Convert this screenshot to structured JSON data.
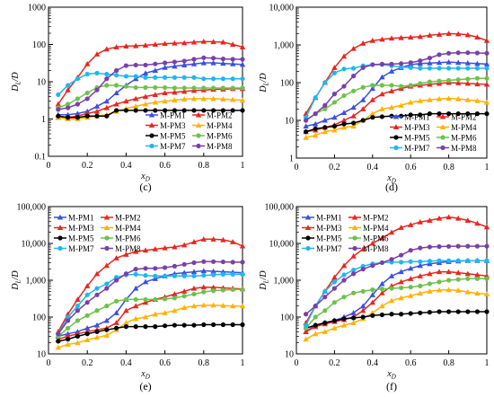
{
  "series_style": [
    {
      "name": "M-PM1",
      "color": "#3b4fe0",
      "marker": "triangle"
    },
    {
      "name": "M-PM2",
      "color": "#e8261f",
      "marker": "triangle"
    },
    {
      "name": "M-PM3",
      "color": "#e8261f",
      "marker": "triangle"
    },
    {
      "name": "M-PM4",
      "color": "#ffb300",
      "marker": "triangle"
    },
    {
      "name": "M-PM5",
      "color": "#000000",
      "marker": "circle"
    },
    {
      "name": "M-PM6",
      "color": "#6cc24a",
      "marker": "circle"
    },
    {
      "name": "M-PM7",
      "color": "#1fb7ee",
      "marker": "circle"
    },
    {
      "name": "M-PM8",
      "color": "#7a3fa8",
      "marker": "circle"
    }
  ],
  "chart_data": [
    {
      "panel_label": "(c)",
      "type": "line",
      "xlabel": "x_D",
      "ylabel": "D_L/D",
      "log_y": true,
      "xlim": [
        0,
        1
      ],
      "ylim": [
        0.1,
        1000
      ],
      "x_ticks": [
        "0",
        "0.2",
        "0.4",
        "0.6",
        "0.8",
        "1"
      ],
      "y_ticks": [
        "0.1",
        "1",
        "10",
        "100",
        "1000"
      ],
      "legend_position": "bottom-right",
      "x": [
        0.05,
        0.1,
        0.15,
        0.2,
        0.25,
        0.3,
        0.35,
        0.4,
        0.45,
        0.5,
        0.55,
        0.6,
        0.65,
        0.7,
        0.75,
        0.8,
        0.85,
        0.9,
        0.95,
        1.0
      ],
      "series": [
        {
          "name": "M-PM1",
          "values": [
            1.3,
            1.3,
            1.4,
            1.6,
            2.2,
            3.0,
            5,
            8,
            12,
            17,
            20,
            24,
            26,
            28,
            30,
            32,
            32,
            31,
            30,
            29
          ]
        },
        {
          "name": "M-PM2",
          "values": [
            1.1,
            1.1,
            1.2,
            1.4,
            1.6,
            2.0,
            2.5,
            3.0,
            3.5,
            4.0,
            4.5,
            5.0,
            5.2,
            5.5,
            5.8,
            6.0,
            6.2,
            6.3,
            6.5,
            6.5
          ]
        },
        {
          "name": "M-PM3",
          "values": [
            2.5,
            6,
            13,
            30,
            55,
            75,
            85,
            90,
            92,
            95,
            100,
            105,
            108,
            110,
            115,
            120,
            118,
            115,
            100,
            85
          ]
        },
        {
          "name": "M-PM4",
          "values": [
            1.1,
            1.0,
            1.0,
            1.1,
            1.2,
            1.3,
            1.6,
            1.9,
            2.2,
            2.5,
            2.8,
            3.0,
            3.2,
            3.4,
            3.5,
            3.5,
            3.5,
            3.4,
            3.3,
            3.2
          ]
        },
        {
          "name": "M-PM5",
          "values": [
            1.2,
            1.1,
            1.1,
            1.2,
            1.2,
            1.2,
            1.7,
            1.7,
            1.7,
            1.7,
            1.7,
            1.7,
            1.7,
            1.7,
            1.7,
            1.7,
            1.7,
            1.7,
            1.7,
            1.7
          ]
        },
        {
          "name": "M-PM6",
          "values": [
            2.0,
            2.5,
            3.5,
            5.0,
            7.0,
            8.0,
            8.0,
            7.5,
            7.0,
            7.0,
            7.0,
            7.0,
            6.8,
            6.8,
            6.8,
            6.8,
            6.8,
            6.8,
            6.8,
            6.8
          ]
        },
        {
          "name": "M-PM7",
          "values": [
            4.5,
            8,
            12,
            16,
            17,
            16,
            15,
            14,
            14,
            13,
            13,
            13,
            13,
            13,
            13,
            12,
            12,
            12,
            12,
            12
          ]
        },
        {
          "name": "M-PM8",
          "values": [
            1.8,
            2.0,
            2.5,
            3.5,
            6,
            12,
            20,
            27,
            28,
            28,
            30,
            32,
            34,
            36,
            40,
            44,
            43,
            41,
            40,
            40
          ]
        }
      ]
    },
    {
      "panel_label": "(d)",
      "type": "line",
      "xlabel": "x_D",
      "ylabel": "D_L/D",
      "log_y": true,
      "xlim": [
        0,
        1
      ],
      "ylim": [
        1,
        10000
      ],
      "x_ticks": [
        "0",
        "0.2",
        "0.4",
        "0.6",
        "0.8",
        "1"
      ],
      "y_ticks": [
        "1",
        "10",
        "100",
        "1,000",
        "10,000"
      ],
      "legend_position": "bottom-right",
      "x": [
        0.05,
        0.1,
        0.15,
        0.2,
        0.25,
        0.3,
        0.35,
        0.4,
        0.45,
        0.5,
        0.55,
        0.6,
        0.65,
        0.7,
        0.75,
        0.8,
        0.85,
        0.9,
        0.95,
        1.0
      ],
      "series": [
        {
          "name": "M-PM1",
          "values": [
            7,
            8,
            10,
            12,
            16,
            22,
            35,
            70,
            140,
            200,
            250,
            300,
            320,
            330,
            340,
            350,
            340,
            330,
            320,
            310
          ]
        },
        {
          "name": "M-PM2",
          "values": [
            5,
            5.5,
            6.5,
            7.5,
            10,
            13,
            20,
            35,
            50,
            60,
            70,
            80,
            85,
            90,
            95,
            100,
            98,
            95,
            92,
            90
          ]
        },
        {
          "name": "M-PM3",
          "values": [
            15,
            40,
            100,
            250,
            500,
            800,
            1100,
            1300,
            1400,
            1500,
            1550,
            1600,
            1650,
            1800,
            1900,
            2000,
            1950,
            1850,
            1600,
            1300
          ]
        },
        {
          "name": "M-PM4",
          "values": [
            3.5,
            4,
            5,
            5.5,
            6.5,
            7,
            10,
            15,
            20,
            22,
            25,
            30,
            33,
            35,
            37,
            38,
            37,
            35,
            33,
            30
          ]
        },
        {
          "name": "M-PM5",
          "values": [
            5,
            6,
            6.5,
            7,
            8,
            8.5,
            10,
            12,
            12.5,
            13,
            13,
            14,
            14,
            15,
            15,
            15,
            15,
            15,
            15,
            15
          ]
        },
        {
          "name": "M-PM6",
          "values": [
            10,
            15,
            20,
            30,
            45,
            60,
            75,
            85,
            85,
            85,
            80,
            85,
            95,
            105,
            110,
            115,
            120,
            125,
            130,
            130
          ]
        },
        {
          "name": "M-PM7",
          "values": [
            12,
            40,
            100,
            180,
            230,
            240,
            280,
            300,
            300,
            280,
            260,
            250,
            240,
            240,
            240,
            240,
            240,
            240,
            240,
            240
          ]
        },
        {
          "name": "M-PM8",
          "values": [
            10,
            15,
            25,
            50,
            80,
            150,
            250,
            300,
            310,
            310,
            320,
            340,
            380,
            450,
            550,
            600,
            620,
            620,
            610,
            600
          ]
        }
      ]
    },
    {
      "panel_label": "(e)",
      "type": "line",
      "xlabel": "x_D",
      "ylabel": "D_L/D",
      "log_y": true,
      "xlim": [
        0,
        1
      ],
      "ylim": [
        10,
        100000
      ],
      "x_ticks": [
        "0",
        "0.2",
        "0.4",
        "0.6",
        "0.8",
        "1"
      ],
      "y_ticks": [
        "10",
        "100",
        "1,000",
        "10,000",
        "100,000"
      ],
      "legend_position": "top-left",
      "x": [
        0.05,
        0.1,
        0.15,
        0.2,
        0.25,
        0.3,
        0.35,
        0.4,
        0.45,
        0.5,
        0.55,
        0.6,
        0.65,
        0.7,
        0.75,
        0.8,
        0.85,
        0.9,
        0.95,
        1.0
      ],
      "series": [
        {
          "name": "M-PM1",
          "values": [
            30,
            35,
            40,
            50,
            60,
            80,
            130,
            300,
            600,
            900,
            1100,
            1300,
            1500,
            1600,
            1700,
            1800,
            1750,
            1700,
            1650,
            1600
          ]
        },
        {
          "name": "M-PM2",
          "values": [
            25,
            30,
            35,
            40,
            45,
            50,
            70,
            150,
            200,
            250,
            300,
            350,
            420,
            500,
            600,
            650,
            640,
            620,
            600,
            580
          ]
        },
        {
          "name": "M-PM3",
          "values": [
            40,
            120,
            300,
            700,
            1500,
            2500,
            4000,
            5000,
            6000,
            6500,
            7000,
            7500,
            8000,
            9000,
            11000,
            13000,
            13000,
            12500,
            11000,
            8500
          ]
        },
        {
          "name": "M-PM4",
          "values": [
            15,
            18,
            20,
            24,
            28,
            32,
            45,
            70,
            90,
            100,
            120,
            130,
            150,
            180,
            200,
            210,
            210,
            205,
            200,
            200
          ]
        },
        {
          "name": "M-PM5",
          "values": [
            22,
            25,
            30,
            35,
            40,
            45,
            50,
            55,
            55,
            55,
            55,
            58,
            60,
            60,
            60,
            62,
            62,
            62,
            62,
            62
          ]
        },
        {
          "name": "M-PM6",
          "values": [
            30,
            50,
            80,
            110,
            150,
            200,
            270,
            300,
            300,
            300,
            300,
            310,
            330,
            370,
            420,
            480,
            520,
            540,
            560,
            560
          ]
        },
        {
          "name": "M-PM7",
          "values": [
            35,
            100,
            200,
            400,
            600,
            800,
            1200,
            1400,
            1450,
            1350,
            1300,
            1300,
            1300,
            1300,
            1300,
            1350,
            1400,
            1450,
            1450,
            1450
          ]
        },
        {
          "name": "M-PM8",
          "values": [
            35,
            80,
            150,
            250,
            400,
            600,
            1000,
            1500,
            2000,
            2100,
            2100,
            2200,
            2400,
            2700,
            3000,
            3200,
            3200,
            3150,
            3100,
            3100
          ]
        }
      ]
    },
    {
      "panel_label": "(f)",
      "type": "line",
      "xlabel": "x_D",
      "ylabel": "D_L/D",
      "log_y": true,
      "xlim": [
        0,
        1
      ],
      "ylim": [
        10,
        100000
      ],
      "x_ticks": [
        "0",
        "0.2",
        "0.4",
        "0.6",
        "0.8",
        "1"
      ],
      "y_ticks": [
        "10",
        "100",
        "1,000",
        "10,000",
        "100,000"
      ],
      "legend_position": "top-left",
      "x": [
        0.05,
        0.1,
        0.15,
        0.2,
        0.25,
        0.3,
        0.35,
        0.4,
        0.45,
        0.5,
        0.55,
        0.6,
        0.65,
        0.7,
        0.75,
        0.8,
        0.85,
        0.9,
        0.95,
        1.0
      ],
      "series": [
        {
          "name": "M-PM1",
          "values": [
            40,
            60,
            70,
            80,
            100,
            130,
            200,
            400,
            800,
            1300,
            1700,
            2100,
            2500,
            2800,
            3000,
            3200,
            3300,
            3400,
            3400,
            3400
          ]
        },
        {
          "name": "M-PM2",
          "values": [
            40,
            55,
            65,
            75,
            85,
            100,
            150,
            250,
            450,
            700,
            900,
            1100,
            1300,
            1500,
            1700,
            1700,
            1600,
            1500,
            1400,
            1300
          ]
        },
        {
          "name": "M-PM3",
          "values": [
            70,
            200,
            500,
            1200,
            2500,
            4500,
            7000,
            10000,
            14000,
            20000,
            27000,
            32000,
            38000,
            42000,
            48000,
            52000,
            48000,
            42000,
            35000,
            28000
          ]
        },
        {
          "name": "M-PM4",
          "values": [
            25,
            35,
            40,
            50,
            60,
            70,
            90,
            130,
            200,
            280,
            330,
            380,
            440,
            500,
            540,
            550,
            530,
            480,
            440,
            420
          ]
        },
        {
          "name": "M-PM5",
          "values": [
            50,
            60,
            70,
            80,
            90,
            95,
            100,
            110,
            115,
            120,
            120,
            125,
            130,
            135,
            140,
            140,
            140,
            140,
            140,
            140
          ]
        },
        {
          "name": "M-PM6",
          "values": [
            50,
            100,
            150,
            250,
            350,
            450,
            500,
            550,
            580,
            600,
            620,
            650,
            700,
            800,
            900,
            1000,
            1050,
            1100,
            1100,
            1100
          ]
        },
        {
          "name": "M-PM7",
          "values": [
            60,
            200,
            500,
            900,
            1400,
            1900,
            2400,
            2800,
            3000,
            3100,
            3100,
            3200,
            3200,
            3300,
            3400,
            3400,
            3400,
            3400,
            3400,
            3400
          ]
        },
        {
          "name": "M-PM8",
          "values": [
            120,
            200,
            350,
            600,
            1000,
            1500,
            2000,
            2500,
            3000,
            3700,
            4800,
            6500,
            7500,
            8000,
            8200,
            8300,
            8400,
            8400,
            8400,
            8400
          ]
        }
      ]
    }
  ]
}
